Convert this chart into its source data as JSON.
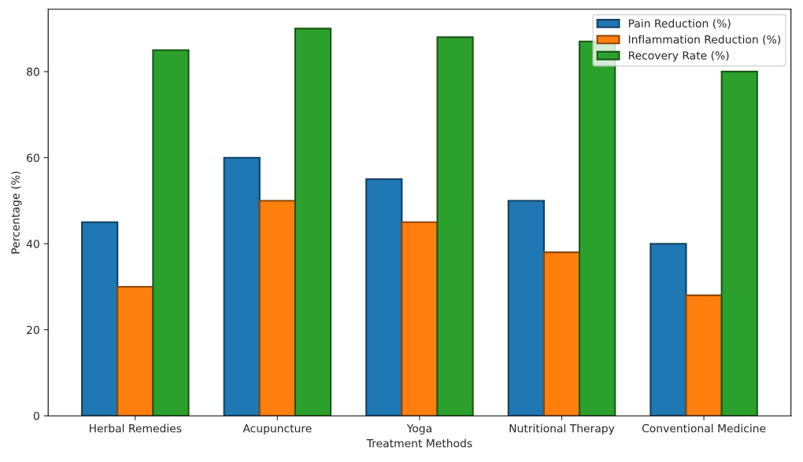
{
  "chart_data": {
    "type": "bar",
    "xlabel": "Treatment Methods",
    "ylabel": "Percentage (%)",
    "categories": [
      "Herbal Remedies",
      "Acupuncture",
      "Yoga",
      "Nutritional Therapy",
      "Conventional Medicine"
    ],
    "series": [
      {
        "name": "Pain Reduction (%)",
        "color": "#1f77b4",
        "values": [
          45,
          60,
          55,
          50,
          40
        ]
      },
      {
        "name": "Inflammation Reduction (%)",
        "color": "#ff7f0e",
        "values": [
          30,
          50,
          45,
          38,
          28
        ]
      },
      {
        "name": "Recovery Rate (%)",
        "color": "#2ca02c",
        "values": [
          85,
          90,
          88,
          87,
          80
        ]
      }
    ],
    "ylim": [
      0,
      94.5
    ],
    "yticks": [
      0,
      20,
      40,
      60,
      80
    ],
    "grid": false,
    "legend": "top right"
  }
}
